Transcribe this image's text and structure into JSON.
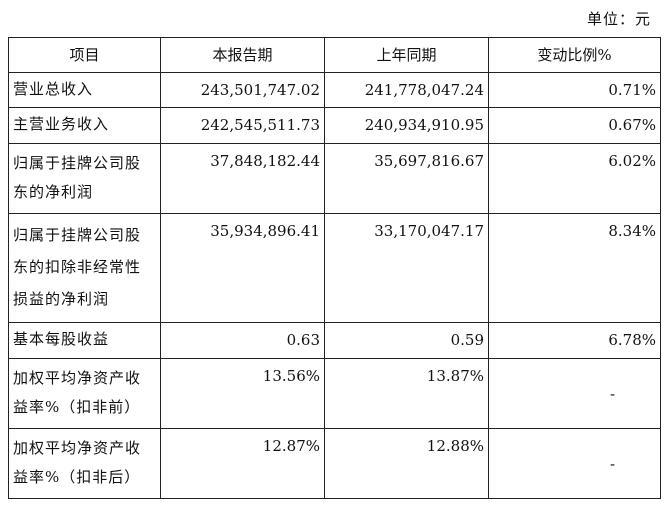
{
  "unit_label": "单位：元",
  "table": {
    "headers": [
      "项目",
      "本报告期",
      "上年同期",
      "变动比例%"
    ],
    "rows": [
      {
        "label": "营业总收入",
        "current": "243,501,747.02",
        "previous": "241,778,047.24",
        "change": "0.71%"
      },
      {
        "label": "主营业务收入",
        "current": "242,545,511.73",
        "previous": "240,934,910.95",
        "change": "0.67%"
      },
      {
        "label": "归属于挂牌公司股东的净利润",
        "current": "37,848,182.44",
        "previous": "35,697,816.67",
        "change": "6.02%"
      },
      {
        "label": "归属于挂牌公司股东的扣除非经常性损益的净利润",
        "current": "35,934,896.41",
        "previous": "33,170,047.17",
        "change": "8.34%"
      },
      {
        "label": "基本每股收益",
        "current": "0.63",
        "previous": "0.59",
        "change": "6.78%"
      },
      {
        "label": "加权平均净资产收益率%（扣非前）",
        "current": "13.56%",
        "previous": "13.87%",
        "change": "-"
      },
      {
        "label": "加权平均净资产收益率%（扣非后）",
        "current": "12.87%",
        "previous": "12.88%",
        "change": "-"
      }
    ]
  }
}
